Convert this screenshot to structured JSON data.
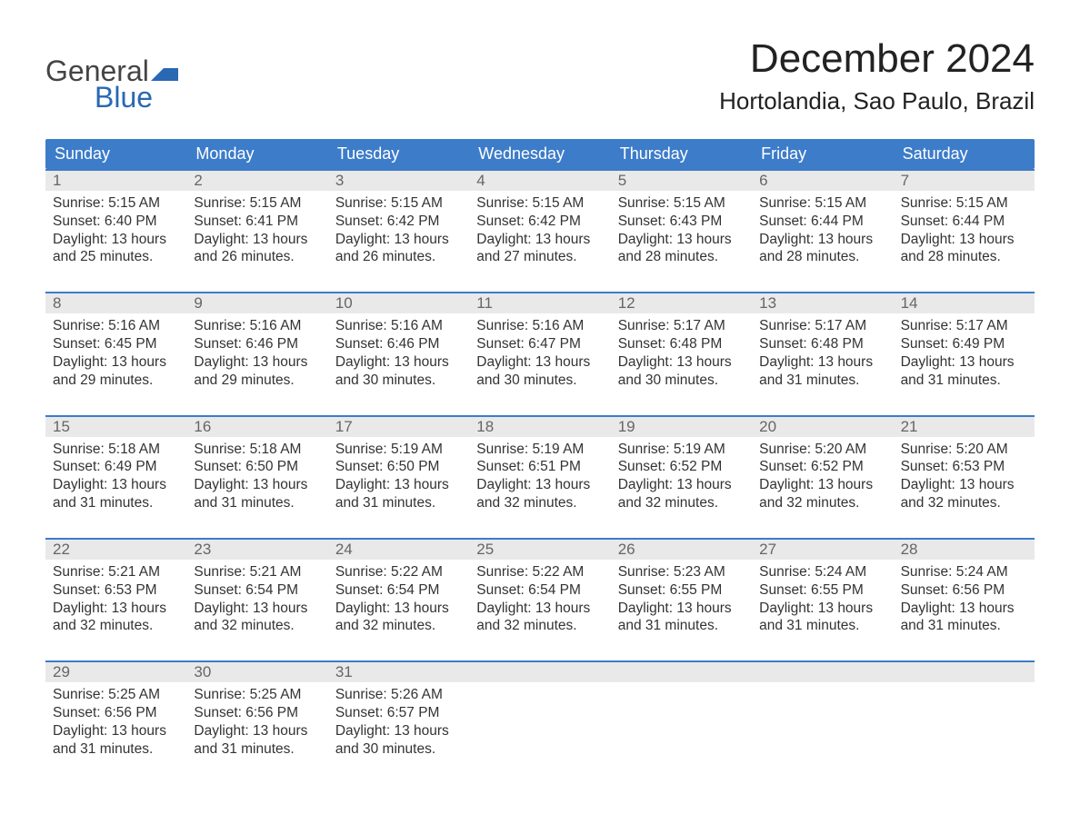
{
  "logo": {
    "word1": "General",
    "word2": "Blue",
    "flag_color": "#2968b2"
  },
  "title": "December 2024",
  "location": "Hortolandia, Sao Paulo, Brazil",
  "colors": {
    "header_bg": "#3d7cc9",
    "header_text": "#ffffff",
    "daynum_bg": "#e9e9e9",
    "border": "#3d7cc9",
    "body_text": "#333333",
    "logo_gray": "#444444",
    "logo_blue": "#2968b2",
    "background": "#ffffff"
  },
  "typography": {
    "title_fontsize": 44,
    "location_fontsize": 26,
    "header_fontsize": 18,
    "daynum_fontsize": 17,
    "body_fontsize": 15.5,
    "logo_fontsize": 32
  },
  "day_names": [
    "Sunday",
    "Monday",
    "Tuesday",
    "Wednesday",
    "Thursday",
    "Friday",
    "Saturday"
  ],
  "weeks": [
    [
      {
        "n": "1",
        "sunrise": "5:15 AM",
        "sunset": "6:40 PM",
        "dl1": "13 hours",
        "dl2": "and 25 minutes."
      },
      {
        "n": "2",
        "sunrise": "5:15 AM",
        "sunset": "6:41 PM",
        "dl1": "13 hours",
        "dl2": "and 26 minutes."
      },
      {
        "n": "3",
        "sunrise": "5:15 AM",
        "sunset": "6:42 PM",
        "dl1": "13 hours",
        "dl2": "and 26 minutes."
      },
      {
        "n": "4",
        "sunrise": "5:15 AM",
        "sunset": "6:42 PM",
        "dl1": "13 hours",
        "dl2": "and 27 minutes."
      },
      {
        "n": "5",
        "sunrise": "5:15 AM",
        "sunset": "6:43 PM",
        "dl1": "13 hours",
        "dl2": "and 28 minutes."
      },
      {
        "n": "6",
        "sunrise": "5:15 AM",
        "sunset": "6:44 PM",
        "dl1": "13 hours",
        "dl2": "and 28 minutes."
      },
      {
        "n": "7",
        "sunrise": "5:15 AM",
        "sunset": "6:44 PM",
        "dl1": "13 hours",
        "dl2": "and 28 minutes."
      }
    ],
    [
      {
        "n": "8",
        "sunrise": "5:16 AM",
        "sunset": "6:45 PM",
        "dl1": "13 hours",
        "dl2": "and 29 minutes."
      },
      {
        "n": "9",
        "sunrise": "5:16 AM",
        "sunset": "6:46 PM",
        "dl1": "13 hours",
        "dl2": "and 29 minutes."
      },
      {
        "n": "10",
        "sunrise": "5:16 AM",
        "sunset": "6:46 PM",
        "dl1": "13 hours",
        "dl2": "and 30 minutes."
      },
      {
        "n": "11",
        "sunrise": "5:16 AM",
        "sunset": "6:47 PM",
        "dl1": "13 hours",
        "dl2": "and 30 minutes."
      },
      {
        "n": "12",
        "sunrise": "5:17 AM",
        "sunset": "6:48 PM",
        "dl1": "13 hours",
        "dl2": "and 30 minutes."
      },
      {
        "n": "13",
        "sunrise": "5:17 AM",
        "sunset": "6:48 PM",
        "dl1": "13 hours",
        "dl2": "and 31 minutes."
      },
      {
        "n": "14",
        "sunrise": "5:17 AM",
        "sunset": "6:49 PM",
        "dl1": "13 hours",
        "dl2": "and 31 minutes."
      }
    ],
    [
      {
        "n": "15",
        "sunrise": "5:18 AM",
        "sunset": "6:49 PM",
        "dl1": "13 hours",
        "dl2": "and 31 minutes."
      },
      {
        "n": "16",
        "sunrise": "5:18 AM",
        "sunset": "6:50 PM",
        "dl1": "13 hours",
        "dl2": "and 31 minutes."
      },
      {
        "n": "17",
        "sunrise": "5:19 AM",
        "sunset": "6:50 PM",
        "dl1": "13 hours",
        "dl2": "and 31 minutes."
      },
      {
        "n": "18",
        "sunrise": "5:19 AM",
        "sunset": "6:51 PM",
        "dl1": "13 hours",
        "dl2": "and 32 minutes."
      },
      {
        "n": "19",
        "sunrise": "5:19 AM",
        "sunset": "6:52 PM",
        "dl1": "13 hours",
        "dl2": "and 32 minutes."
      },
      {
        "n": "20",
        "sunrise": "5:20 AM",
        "sunset": "6:52 PM",
        "dl1": "13 hours",
        "dl2": "and 32 minutes."
      },
      {
        "n": "21",
        "sunrise": "5:20 AM",
        "sunset": "6:53 PM",
        "dl1": "13 hours",
        "dl2": "and 32 minutes."
      }
    ],
    [
      {
        "n": "22",
        "sunrise": "5:21 AM",
        "sunset": "6:53 PM",
        "dl1": "13 hours",
        "dl2": "and 32 minutes."
      },
      {
        "n": "23",
        "sunrise": "5:21 AM",
        "sunset": "6:54 PM",
        "dl1": "13 hours",
        "dl2": "and 32 minutes."
      },
      {
        "n": "24",
        "sunrise": "5:22 AM",
        "sunset": "6:54 PM",
        "dl1": "13 hours",
        "dl2": "and 32 minutes."
      },
      {
        "n": "25",
        "sunrise": "5:22 AM",
        "sunset": "6:54 PM",
        "dl1": "13 hours",
        "dl2": "and 32 minutes."
      },
      {
        "n": "26",
        "sunrise": "5:23 AM",
        "sunset": "6:55 PM",
        "dl1": "13 hours",
        "dl2": "and 31 minutes."
      },
      {
        "n": "27",
        "sunrise": "5:24 AM",
        "sunset": "6:55 PM",
        "dl1": "13 hours",
        "dl2": "and 31 minutes."
      },
      {
        "n": "28",
        "sunrise": "5:24 AM",
        "sunset": "6:56 PM",
        "dl1": "13 hours",
        "dl2": "and 31 minutes."
      }
    ],
    [
      {
        "n": "29",
        "sunrise": "5:25 AM",
        "sunset": "6:56 PM",
        "dl1": "13 hours",
        "dl2": "and 31 minutes."
      },
      {
        "n": "30",
        "sunrise": "5:25 AM",
        "sunset": "6:56 PM",
        "dl1": "13 hours",
        "dl2": "and 31 minutes."
      },
      {
        "n": "31",
        "sunrise": "5:26 AM",
        "sunset": "6:57 PM",
        "dl1": "13 hours",
        "dl2": "and 30 minutes."
      },
      null,
      null,
      null,
      null
    ]
  ],
  "labels": {
    "sunrise_prefix": "Sunrise: ",
    "sunset_prefix": "Sunset: ",
    "daylight_prefix": "Daylight: "
  }
}
